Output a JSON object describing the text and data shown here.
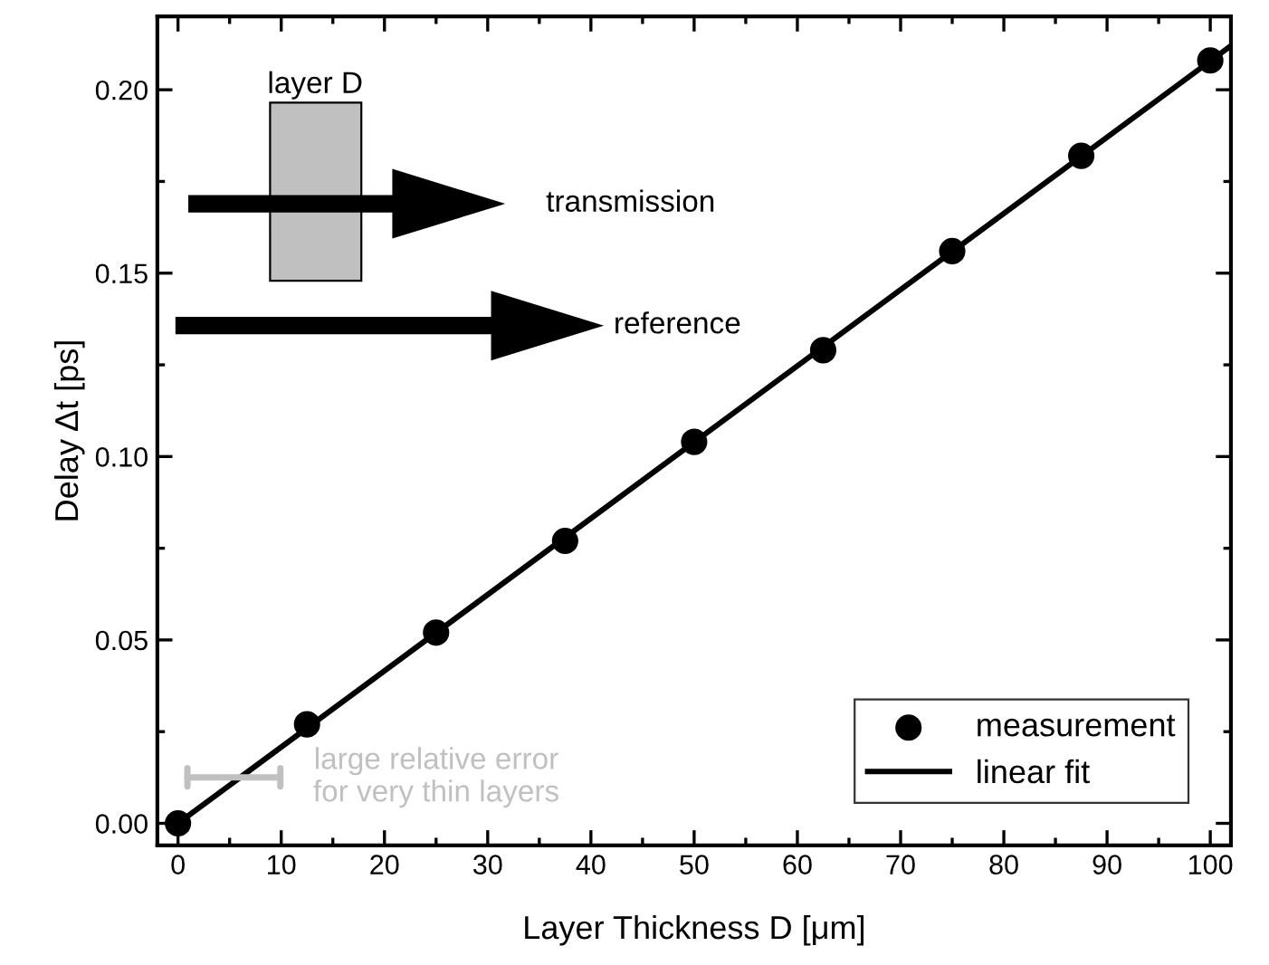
{
  "chart_data": {
    "type": "scatter",
    "xlabel": "Layer Thickness D [μm]",
    "ylabel": "Delay Δt [ps]",
    "x": [
      0,
      12.5,
      25,
      37.5,
      50,
      62.5,
      75,
      87.5,
      100
    ],
    "series": [
      {
        "name": "measurement",
        "color": "#000000",
        "marker": "circle",
        "values": [
          0,
          0.027,
          0.052,
          0.077,
          0.104,
          0.129,
          0.156,
          0.182,
          0.208
        ]
      },
      {
        "name": "linear fit",
        "type": "line",
        "color": "#000000",
        "line_style": "solid",
        "x": [
          0,
          102
        ],
        "values": [
          0,
          0.212
        ]
      }
    ],
    "xlim": [
      -2,
      102
    ],
    "ylim": [
      -0.006,
      0.22
    ],
    "xticks": [
      0,
      10,
      20,
      30,
      40,
      50,
      60,
      70,
      80,
      90,
      100
    ],
    "yticks": [
      {
        "value": 0,
        "label": "0.00"
      },
      {
        "value": 0.05,
        "label": "0.05"
      },
      {
        "value": 0.1,
        "label": "0.10"
      },
      {
        "value": 0.15,
        "label": "0.15"
      },
      {
        "value": 0.2,
        "label": "0.20"
      }
    ],
    "grid": false,
    "legend": "bottom right",
    "annotations": [
      "layer D",
      "transmission",
      "reference",
      "large relative error\nfor very thin layers"
    ]
  }
}
